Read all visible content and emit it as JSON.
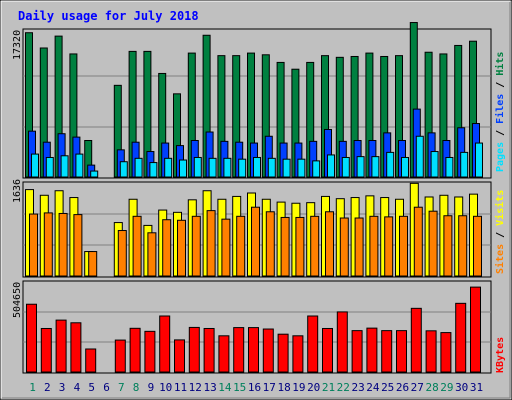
{
  "chart_data": [
    {
      "type": "bar",
      "title": "Daily usage for July 2018",
      "ytick": "17320",
      "categories": [
        "1",
        "2",
        "3",
        "4",
        "5",
        "6",
        "7",
        "8",
        "9",
        "10",
        "11",
        "12",
        "13",
        "14",
        "15",
        "16",
        "17",
        "18",
        "19",
        "20",
        "21",
        "22",
        "23",
        "24",
        "25",
        "26",
        "27",
        "28",
        "29",
        "30",
        "31"
      ],
      "series": [
        {
          "name": "Hits",
          "values": [
            17000,
            15200,
            16600,
            14500,
            4300,
            null,
            10800,
            14800,
            14800,
            12200,
            9800,
            14600,
            16700,
            14300,
            14300,
            14600,
            14400,
            13500,
            12700,
            13500,
            14300,
            14100,
            14200,
            14600,
            14200,
            14300,
            18200,
            14700,
            14500,
            15500,
            16000
          ]
        },
        {
          "name": "Files",
          "values": [
            5400,
            4100,
            5100,
            4700,
            1400,
            null,
            3200,
            4100,
            3000,
            4000,
            3700,
            4300,
            5300,
            4200,
            4100,
            4000,
            4800,
            4000,
            4000,
            4200,
            5600,
            4200,
            4300,
            4300,
            5200,
            4300,
            8000,
            5200,
            4300,
            5800,
            6300
          ]
        },
        {
          "name": "Pages",
          "values": [
            2700,
            2300,
            2500,
            2700,
            700,
            null,
            1800,
            2200,
            1700,
            2200,
            2000,
            2300,
            2200,
            2200,
            2100,
            2300,
            2200,
            2100,
            2100,
            1900,
            2600,
            2300,
            2400,
            2400,
            2900,
            2300,
            4800,
            3000,
            2300,
            2900,
            4000
          ]
        }
      ]
    },
    {
      "type": "bar",
      "ytick": "1636",
      "categories": [
        "1",
        "2",
        "3",
        "4",
        "5",
        "6",
        "7",
        "8",
        "9",
        "10",
        "11",
        "12",
        "13",
        "14",
        "15",
        "16",
        "17",
        "18",
        "19",
        "20",
        "21",
        "22",
        "23",
        "24",
        "25",
        "26",
        "27",
        "28",
        "29",
        "30",
        "31"
      ],
      "series": [
        {
          "name": "Visits",
          "values": [
            1520,
            1420,
            1500,
            1380,
            430,
            null,
            940,
            1350,
            890,
            1160,
            1120,
            1340,
            1500,
            1350,
            1400,
            1460,
            1350,
            1300,
            1280,
            1290,
            1400,
            1360,
            1380,
            1410,
            1380,
            1350,
            1630,
            1390,
            1420,
            1390,
            1440
          ]
        },
        {
          "name": "Sites",
          "values": [
            1090,
            1110,
            1100,
            1080,
            430,
            null,
            800,
            1050,
            760,
            990,
            980,
            1050,
            1150,
            1000,
            1050,
            1210,
            1130,
            1030,
            1030,
            1050,
            1130,
            1020,
            1020,
            1050,
            1040,
            1050,
            1210,
            1140,
            1060,
            1060,
            1050
          ]
        }
      ]
    },
    {
      "type": "bar",
      "ytick": "504650",
      "categories": [
        "1",
        "2",
        "3",
        "4",
        "5",
        "6",
        "7",
        "8",
        "9",
        "10",
        "11",
        "12",
        "13",
        "14",
        "15",
        "16",
        "17",
        "18",
        "19",
        "20",
        "21",
        "22",
        "23",
        "24",
        "25",
        "26",
        "27",
        "28",
        "29",
        "30",
        "31"
      ],
      "series": [
        {
          "name": "KBytes",
          "values": [
            380000,
            244000,
            291000,
            276000,
            129000,
            null,
            179000,
            245000,
            228000,
            314000,
            180000,
            250000,
            244000,
            203000,
            249000,
            249000,
            241000,
            212000,
            203000,
            314000,
            244000,
            337000,
            232000,
            246000,
            232000,
            232000,
            357000,
            231000,
            221000,
            385000,
            476000
          ]
        }
      ]
    }
  ],
  "legend_top": [
    {
      "text": "Pages",
      "color": "#00e0ff"
    },
    {
      "text": " / ",
      "color": "#000000"
    },
    {
      "text": "Files",
      "color": "#0040ff"
    },
    {
      "text": " / ",
      "color": "#000000"
    },
    {
      "text": "Hits",
      "color": "#008040"
    }
  ],
  "legend_mid": [
    {
      "text": "Sites",
      "color": "#ff8000"
    },
    {
      "text": " / ",
      "color": "#000000"
    },
    {
      "text": "Visits",
      "color": "#ffff00"
    }
  ],
  "legend_bot": [
    {
      "text": "KBytes",
      "color": "#ff0000"
    }
  ],
  "weekend_days": [
    1,
    7,
    8,
    14,
    15,
    21,
    22,
    28,
    29
  ],
  "colors": {
    "hits": "#008040",
    "files": "#0040ff",
    "pages": "#00e0ff",
    "visits": "#ffff00",
    "sites": "#ff8000",
    "kbytes": "#ff0000",
    "weekday_label": "#000080",
    "weekend_label": "#00805c",
    "plot_bg": "#c0c0c0",
    "frame_bg": "#c0c0c0",
    "title": "#0000ff"
  }
}
